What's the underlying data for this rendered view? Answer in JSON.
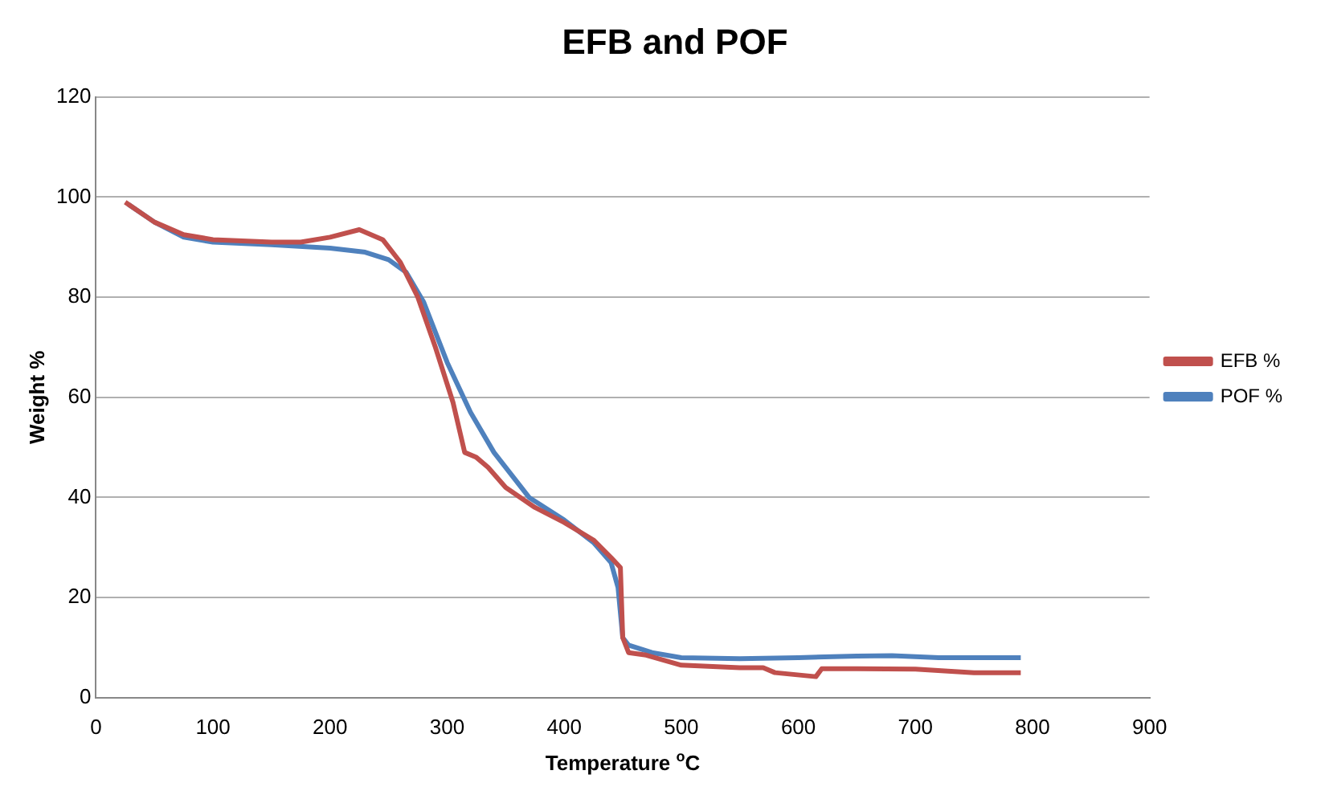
{
  "chart_data": {
    "type": "line",
    "title": "EFB and POF",
    "xlabel": "Temperature $^{o}$C",
    "ylabel": "Weight %",
    "xlim": [
      0,
      900
    ],
    "xticks": [
      0,
      100,
      200,
      300,
      400,
      500,
      600,
      700,
      800,
      900
    ],
    "ylim": [
      0,
      120
    ],
    "yticks": [
      0,
      20,
      40,
      60,
      80,
      100,
      120
    ],
    "grid": "y",
    "legend": "right",
    "marker": "none",
    "line_style": "solid",
    "series": [
      {
        "name": "EFB %",
        "color": "#c0504d",
        "x": [
          25,
          50,
          75,
          100,
          150,
          175,
          200,
          225,
          245,
          260,
          275,
          290,
          305,
          315,
          325,
          335,
          350,
          375,
          400,
          425,
          440,
          448,
          450,
          455,
          470,
          500,
          550,
          570,
          580,
          615,
          620,
          650,
          700,
          750,
          790
        ],
        "values": [
          99,
          95,
          92.5,
          91.5,
          91,
          91,
          92,
          93.5,
          91.5,
          87,
          80,
          70,
          59,
          49,
          48,
          46,
          42,
          38,
          35,
          31.5,
          28,
          26,
          12,
          9,
          8.5,
          6.5,
          6,
          6,
          5,
          4.2,
          5.8,
          5.8,
          5.7,
          5,
          5
        ]
      },
      {
        "name": "POF %",
        "color": "#4f81bd",
        "x": [
          28,
          50,
          75,
          100,
          150,
          200,
          230,
          250,
          265,
          280,
          300,
          320,
          340,
          370,
          400,
          425,
          440,
          446,
          450,
          455,
          475,
          500,
          550,
          600,
          650,
          680,
          720,
          790
        ],
        "values": [
          98.5,
          95,
          92,
          91,
          90.5,
          89.8,
          89,
          87.5,
          85,
          79,
          67,
          57,
          49,
          40,
          35.5,
          31,
          27,
          22,
          12,
          10.5,
          9,
          8,
          7.8,
          8,
          8.3,
          8.4,
          8,
          8
        ]
      }
    ]
  }
}
